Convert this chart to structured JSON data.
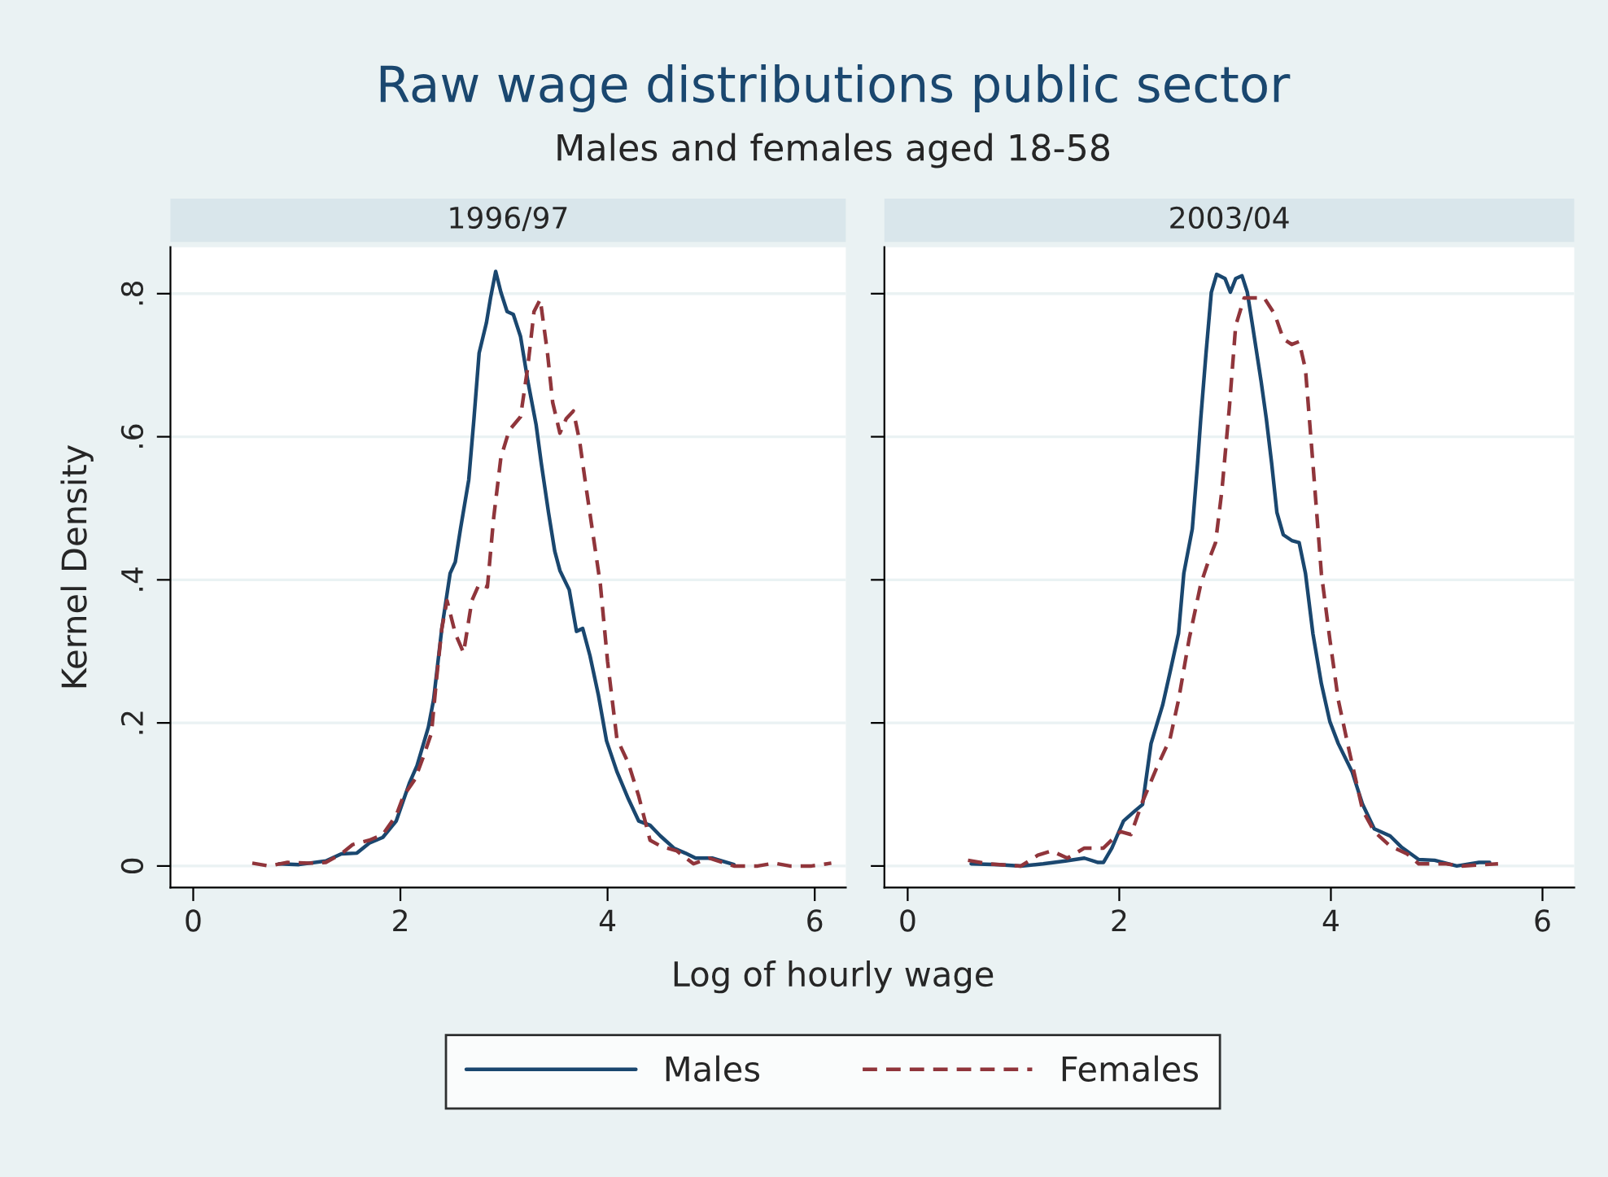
{
  "chart_data": [
    {
      "type": "line",
      "title": "1996/97",
      "annotations": [
        "Raw wage distributions public sector",
        "Males and females aged 18-58"
      ],
      "xlabel": "Log of hourly wage",
      "ylabel": "Kernel Density",
      "xlim": [
        -0.22,
        6.3
      ],
      "ylim": [
        -0.03,
        0.865
      ],
      "xticks": [
        0,
        2,
        4,
        6
      ],
      "yticks": [
        {
          "value": 0,
          "label": "0"
        },
        {
          "value": 0.2,
          "label": ".2"
        },
        {
          "value": 0.4,
          "label": ".4"
        },
        {
          "value": 0.6,
          "label": ".6"
        },
        {
          "value": 0.8,
          "label": ".8"
        }
      ],
      "grid": "y",
      "legend": "bottom",
      "series": [
        {
          "name": "Males",
          "color": "#1a476f",
          "line_style": "solid",
          "x": [
            0.83,
            1.02,
            1.28,
            1.43,
            1.58,
            1.7,
            1.83,
            1.96,
            2.09,
            2.16,
            2.27,
            2.32,
            2.4,
            2.48,
            2.53,
            2.58,
            2.66,
            2.71,
            2.76,
            2.83,
            2.87,
            2.92,
            2.97,
            3.03,
            3.09,
            3.16,
            3.23,
            3.31,
            3.36,
            3.43,
            3.49,
            3.54,
            3.63,
            3.7,
            3.76,
            3.83,
            3.91,
            3.99,
            4.09,
            4.2,
            4.3,
            4.41,
            4.51,
            4.64,
            4.75,
            4.85,
            5.01,
            5.22
          ],
          "values": [
            0.003,
            0.002,
            0.007,
            0.017,
            0.018,
            0.032,
            0.04,
            0.063,
            0.117,
            0.14,
            0.194,
            0.232,
            0.332,
            0.409,
            0.425,
            0.471,
            0.54,
            0.625,
            0.717,
            0.759,
            0.794,
            0.831,
            0.802,
            0.775,
            0.771,
            0.74,
            0.678,
            0.617,
            0.563,
            0.494,
            0.44,
            0.413,
            0.386,
            0.328,
            0.332,
            0.294,
            0.24,
            0.175,
            0.132,
            0.094,
            0.063,
            0.057,
            0.042,
            0.025,
            0.018,
            0.011,
            0.011,
            0.002
          ]
        },
        {
          "name": "Females",
          "color": "#90353b",
          "line_style": "dashed",
          "x": [
            0.57,
            0.73,
            0.91,
            1.12,
            1.28,
            1.43,
            1.54,
            1.7,
            1.83,
            1.96,
            2.03,
            2.14,
            2.22,
            2.3,
            2.35,
            2.4,
            2.45,
            2.53,
            2.61,
            2.69,
            2.76,
            2.84,
            2.9,
            2.97,
            3.05,
            3.16,
            3.23,
            3.29,
            3.35,
            3.42,
            3.47,
            3.54,
            3.6,
            3.67,
            3.73,
            3.79,
            3.86,
            3.93,
            4.0,
            4.09,
            4.2,
            4.3,
            4.41,
            4.51,
            4.67,
            4.83,
            4.98,
            5.22,
            5.45,
            5.61,
            5.76,
            5.97,
            6.16
          ],
          "values": [
            0.004,
            0,
            0.005,
            0.004,
            0.005,
            0.017,
            0.03,
            0.036,
            0.044,
            0.071,
            0.098,
            0.121,
            0.152,
            0.186,
            0.263,
            0.332,
            0.371,
            0.325,
            0.298,
            0.371,
            0.394,
            0.39,
            0.486,
            0.571,
            0.609,
            0.628,
            0.698,
            0.775,
            0.792,
            0.717,
            0.648,
            0.605,
            0.625,
            0.636,
            0.594,
            0.532,
            0.463,
            0.394,
            0.286,
            0.178,
            0.144,
            0.098,
            0.036,
            0.028,
            0.021,
            0.003,
            0.011,
            0,
            0,
            0.004,
            0,
            0,
            0.004
          ]
        }
      ]
    },
    {
      "type": "line",
      "title": "2003/04",
      "tick_labels": "x",
      "xlim": [
        -0.22,
        6.3
      ],
      "ylim": [
        -0.03,
        0.865
      ],
      "xticks": [
        0,
        2,
        4,
        6
      ],
      "yticks": [
        {
          "value": 0,
          "label": null
        },
        {
          "value": 0.2,
          "label": null
        },
        {
          "value": 0.4,
          "label": null
        },
        {
          "value": 0.6,
          "label": null
        },
        {
          "value": 0.8,
          "label": null
        }
      ],
      "grid": "y",
      "series": [
        {
          "name": "Males",
          "color": "#1a476f",
          "line_style": "solid",
          "x": [
            0.6,
            0.86,
            1.07,
            1.28,
            1.49,
            1.67,
            1.8,
            1.85,
            1.93,
            2.04,
            2.14,
            2.22,
            2.3,
            2.41,
            2.48,
            2.56,
            2.61,
            2.69,
            2.74,
            2.77,
            2.82,
            2.87,
            2.92,
            3.0,
            3.05,
            3.1,
            3.16,
            3.21,
            3.26,
            3.34,
            3.39,
            3.44,
            3.49,
            3.55,
            3.63,
            3.7,
            3.76,
            3.83,
            3.91,
            3.99,
            4.07,
            4.2,
            4.3,
            4.41,
            4.56,
            4.67,
            4.83,
            4.98,
            5.19,
            5.4,
            5.5
          ],
          "values": [
            0.003,
            0.002,
            0,
            0.003,
            0.007,
            0.011,
            0.005,
            0.005,
            0.025,
            0.063,
            0.076,
            0.086,
            0.171,
            0.225,
            0.271,
            0.325,
            0.409,
            0.471,
            0.563,
            0.625,
            0.717,
            0.802,
            0.827,
            0.821,
            0.802,
            0.821,
            0.825,
            0.802,
            0.755,
            0.678,
            0.625,
            0.563,
            0.494,
            0.463,
            0.455,
            0.452,
            0.409,
            0.325,
            0.255,
            0.202,
            0.171,
            0.132,
            0.086,
            0.052,
            0.042,
            0.026,
            0.009,
            0.008,
            0,
            0.005,
            0.005
          ]
        },
        {
          "name": "Females",
          "color": "#90353b",
          "line_style": "dashed",
          "x": [
            0.57,
            0.76,
            1.07,
            1.23,
            1.36,
            1.51,
            1.67,
            1.85,
            2.01,
            2.11,
            2.22,
            2.35,
            2.48,
            2.56,
            2.66,
            2.77,
            2.84,
            2.91,
            2.97,
            3.04,
            3.1,
            3.18,
            3.26,
            3.37,
            3.47,
            3.55,
            3.63,
            3.7,
            3.76,
            3.83,
            3.91,
            3.99,
            4.07,
            4.17,
            4.3,
            4.41,
            4.56,
            4.72,
            4.83,
            5.09,
            5.24,
            5.45,
            5.58
          ],
          "values": [
            0.008,
            0.003,
            0,
            0.015,
            0.021,
            0.011,
            0.025,
            0.025,
            0.048,
            0.044,
            0.09,
            0.136,
            0.178,
            0.232,
            0.317,
            0.394,
            0.425,
            0.452,
            0.525,
            0.64,
            0.755,
            0.794,
            0.794,
            0.794,
            0.771,
            0.737,
            0.729,
            0.733,
            0.694,
            0.563,
            0.409,
            0.317,
            0.232,
            0.163,
            0.078,
            0.048,
            0.028,
            0.017,
            0.003,
            0.003,
            0,
            0.002,
            0.003
          ]
        }
      ]
    }
  ]
}
